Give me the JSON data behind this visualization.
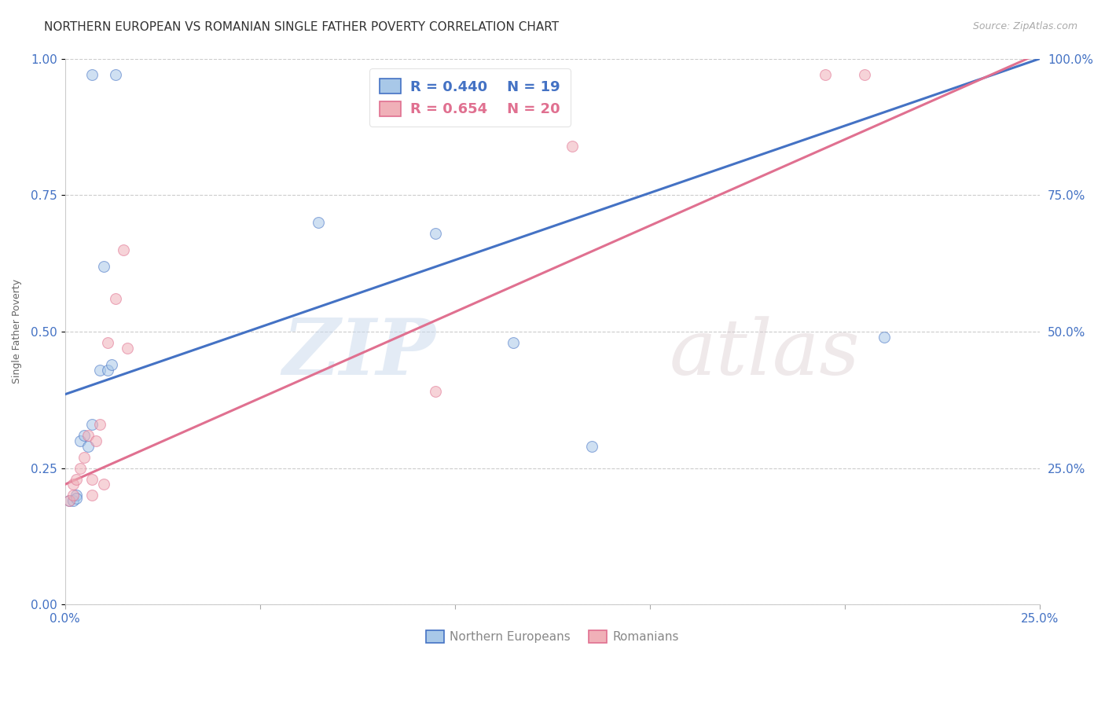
{
  "title": "NORTHERN EUROPEAN VS ROMANIAN SINGLE FATHER POVERTY CORRELATION CHART",
  "source": "Source: ZipAtlas.com",
  "ylabel_label": "Single Father Poverty",
  "xlim": [
    0.0,
    0.25
  ],
  "ylim": [
    0.0,
    1.0
  ],
  "xticks": [
    0.0,
    0.05,
    0.1,
    0.15,
    0.2,
    0.25
  ],
  "yticks": [
    0.0,
    0.25,
    0.5,
    0.75,
    1.0
  ],
  "xtick_labels": [
    "0.0%",
    "",
    "",
    "",
    "",
    "25.0%"
  ],
  "ytick_labels": [
    "",
    "25.0%",
    "50.0%",
    "75.0%",
    "100.0%"
  ],
  "ne_color": "#a8c8e8",
  "ro_color": "#f0b0b8",
  "ne_line_color": "#4472c4",
  "ro_line_color": "#e07090",
  "watermark_zip": "ZIP",
  "watermark_atlas": "atlas",
  "ne_R": 0.44,
  "ne_N": 19,
  "ro_R": 0.654,
  "ro_N": 20,
  "ne_line_x0": 0.0,
  "ne_line_y0": 0.385,
  "ne_line_x1": 0.25,
  "ne_line_y1": 1.0,
  "ro_line_x0": 0.0,
  "ro_line_y0": 0.22,
  "ro_line_x1": 0.25,
  "ro_line_y1": 1.01,
  "ne_x": [
    0.001,
    0.002,
    0.003,
    0.003,
    0.004,
    0.005,
    0.006,
    0.007,
    0.009,
    0.01,
    0.011,
    0.012,
    0.065,
    0.095,
    0.115,
    0.135,
    0.21,
    0.007,
    0.013
  ],
  "ne_y": [
    0.19,
    0.19,
    0.2,
    0.195,
    0.3,
    0.31,
    0.29,
    0.33,
    0.43,
    0.62,
    0.43,
    0.44,
    0.7,
    0.68,
    0.48,
    0.29,
    0.49,
    0.97,
    0.97
  ],
  "ro_x": [
    0.001,
    0.002,
    0.002,
    0.003,
    0.004,
    0.005,
    0.006,
    0.007,
    0.007,
    0.008,
    0.009,
    0.01,
    0.011,
    0.013,
    0.015,
    0.016,
    0.095,
    0.13,
    0.195,
    0.205
  ],
  "ro_y": [
    0.19,
    0.2,
    0.22,
    0.23,
    0.25,
    0.27,
    0.31,
    0.2,
    0.23,
    0.3,
    0.33,
    0.22,
    0.48,
    0.56,
    0.65,
    0.47,
    0.39,
    0.84,
    0.97,
    0.97
  ],
  "title_fontsize": 11,
  "axis_label_fontsize": 9,
  "tick_fontsize": 11,
  "legend_fontsize": 13,
  "source_fontsize": 9,
  "marker_size": 100,
  "marker_alpha": 0.55,
  "background_color": "#ffffff",
  "grid_color": "#cccccc",
  "tick_color": "#4472c4"
}
